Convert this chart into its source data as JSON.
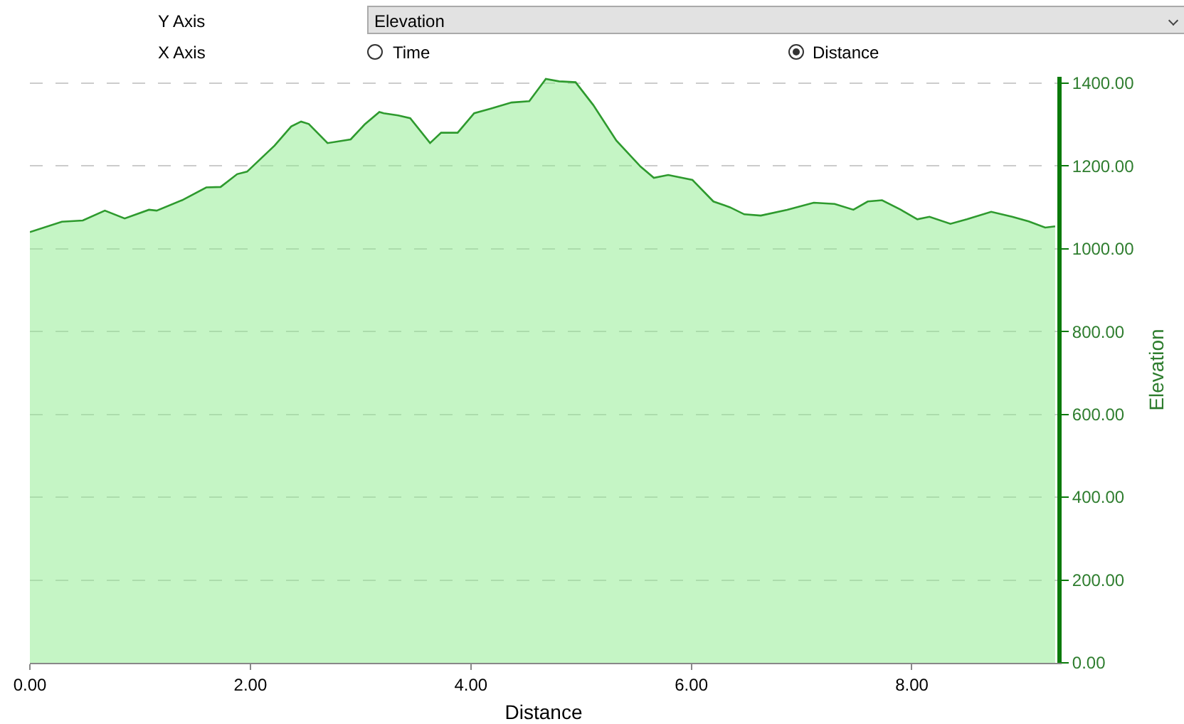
{
  "chart_data": {
    "type": "area",
    "xlabel": "Distance",
    "ylabel": "Elevation",
    "annotations": [
      "Y Axis",
      "Elevation",
      "X Axis",
      "Time",
      "Distance"
    ],
    "x": [
      0,
      0.29,
      0.48,
      0.68,
      0.86,
      1.08,
      1.15,
      1.38,
      1.6,
      1.73,
      1.88,
      1.97,
      2.22,
      2.37,
      2.46,
      2.53,
      2.7,
      2.91,
      3.04,
      3.17,
      3.21,
      3.34,
      3.45,
      3.63,
      3.73,
      3.88,
      4.03,
      4.18,
      4.37,
      4.53,
      4.68,
      4.8,
      4.95,
      5.11,
      5.32,
      5.54,
      5.66,
      5.79,
      6.01,
      6.2,
      6.35,
      6.48,
      6.63,
      6.87,
      7.11,
      7.3,
      7.47,
      7.6,
      7.73,
      7.9,
      8.05,
      8.16,
      8.35,
      8.5,
      8.72,
      8.91,
      9.06,
      9.21,
      9.3
    ],
    "series": [
      {
        "color": "#2e9a2e",
        "values": [
          1040,
          1065,
          1068,
          1092,
          1073,
          1094,
          1092,
          1117,
          1148,
          1149,
          1180,
          1186,
          1249,
          1295,
          1307,
          1301,
          1255,
          1264,
          1301,
          1330,
          1327,
          1322,
          1315,
          1255,
          1280,
          1280,
          1327,
          1338,
          1353,
          1356,
          1410,
          1404,
          1402,
          1347,
          1261,
          1198,
          1171,
          1178,
          1166,
          1114,
          1100,
          1083,
          1080,
          1094,
          1111,
          1108,
          1094,
          1114,
          1117,
          1094,
          1071,
          1077,
          1060,
          1071,
          1089,
          1077,
          1066,
          1051,
          1054
        ]
      }
    ],
    "xlim": [
      0,
      9.32
    ],
    "ylim": [
      0,
      1415
    ],
    "xticks": [
      {
        "value": 0,
        "label": "0.00"
      },
      {
        "value": 2,
        "label": "2.00"
      },
      {
        "value": 4,
        "label": "4.00"
      },
      {
        "value": 6,
        "label": "6.00"
      },
      {
        "value": 8,
        "label": "8.00"
      }
    ],
    "yticks": [
      {
        "value": 0,
        "label": "0.00"
      },
      {
        "value": 200,
        "label": "200.00"
      },
      {
        "value": 400,
        "label": "400.00"
      },
      {
        "value": 600,
        "label": "600.00"
      },
      {
        "value": 800,
        "label": "800.00"
      },
      {
        "value": 1000,
        "label": "1000.00"
      },
      {
        "value": 1200,
        "label": "1200.00"
      },
      {
        "value": 1400,
        "label": "1400.00"
      }
    ],
    "grid": "y",
    "legend": false
  }
}
